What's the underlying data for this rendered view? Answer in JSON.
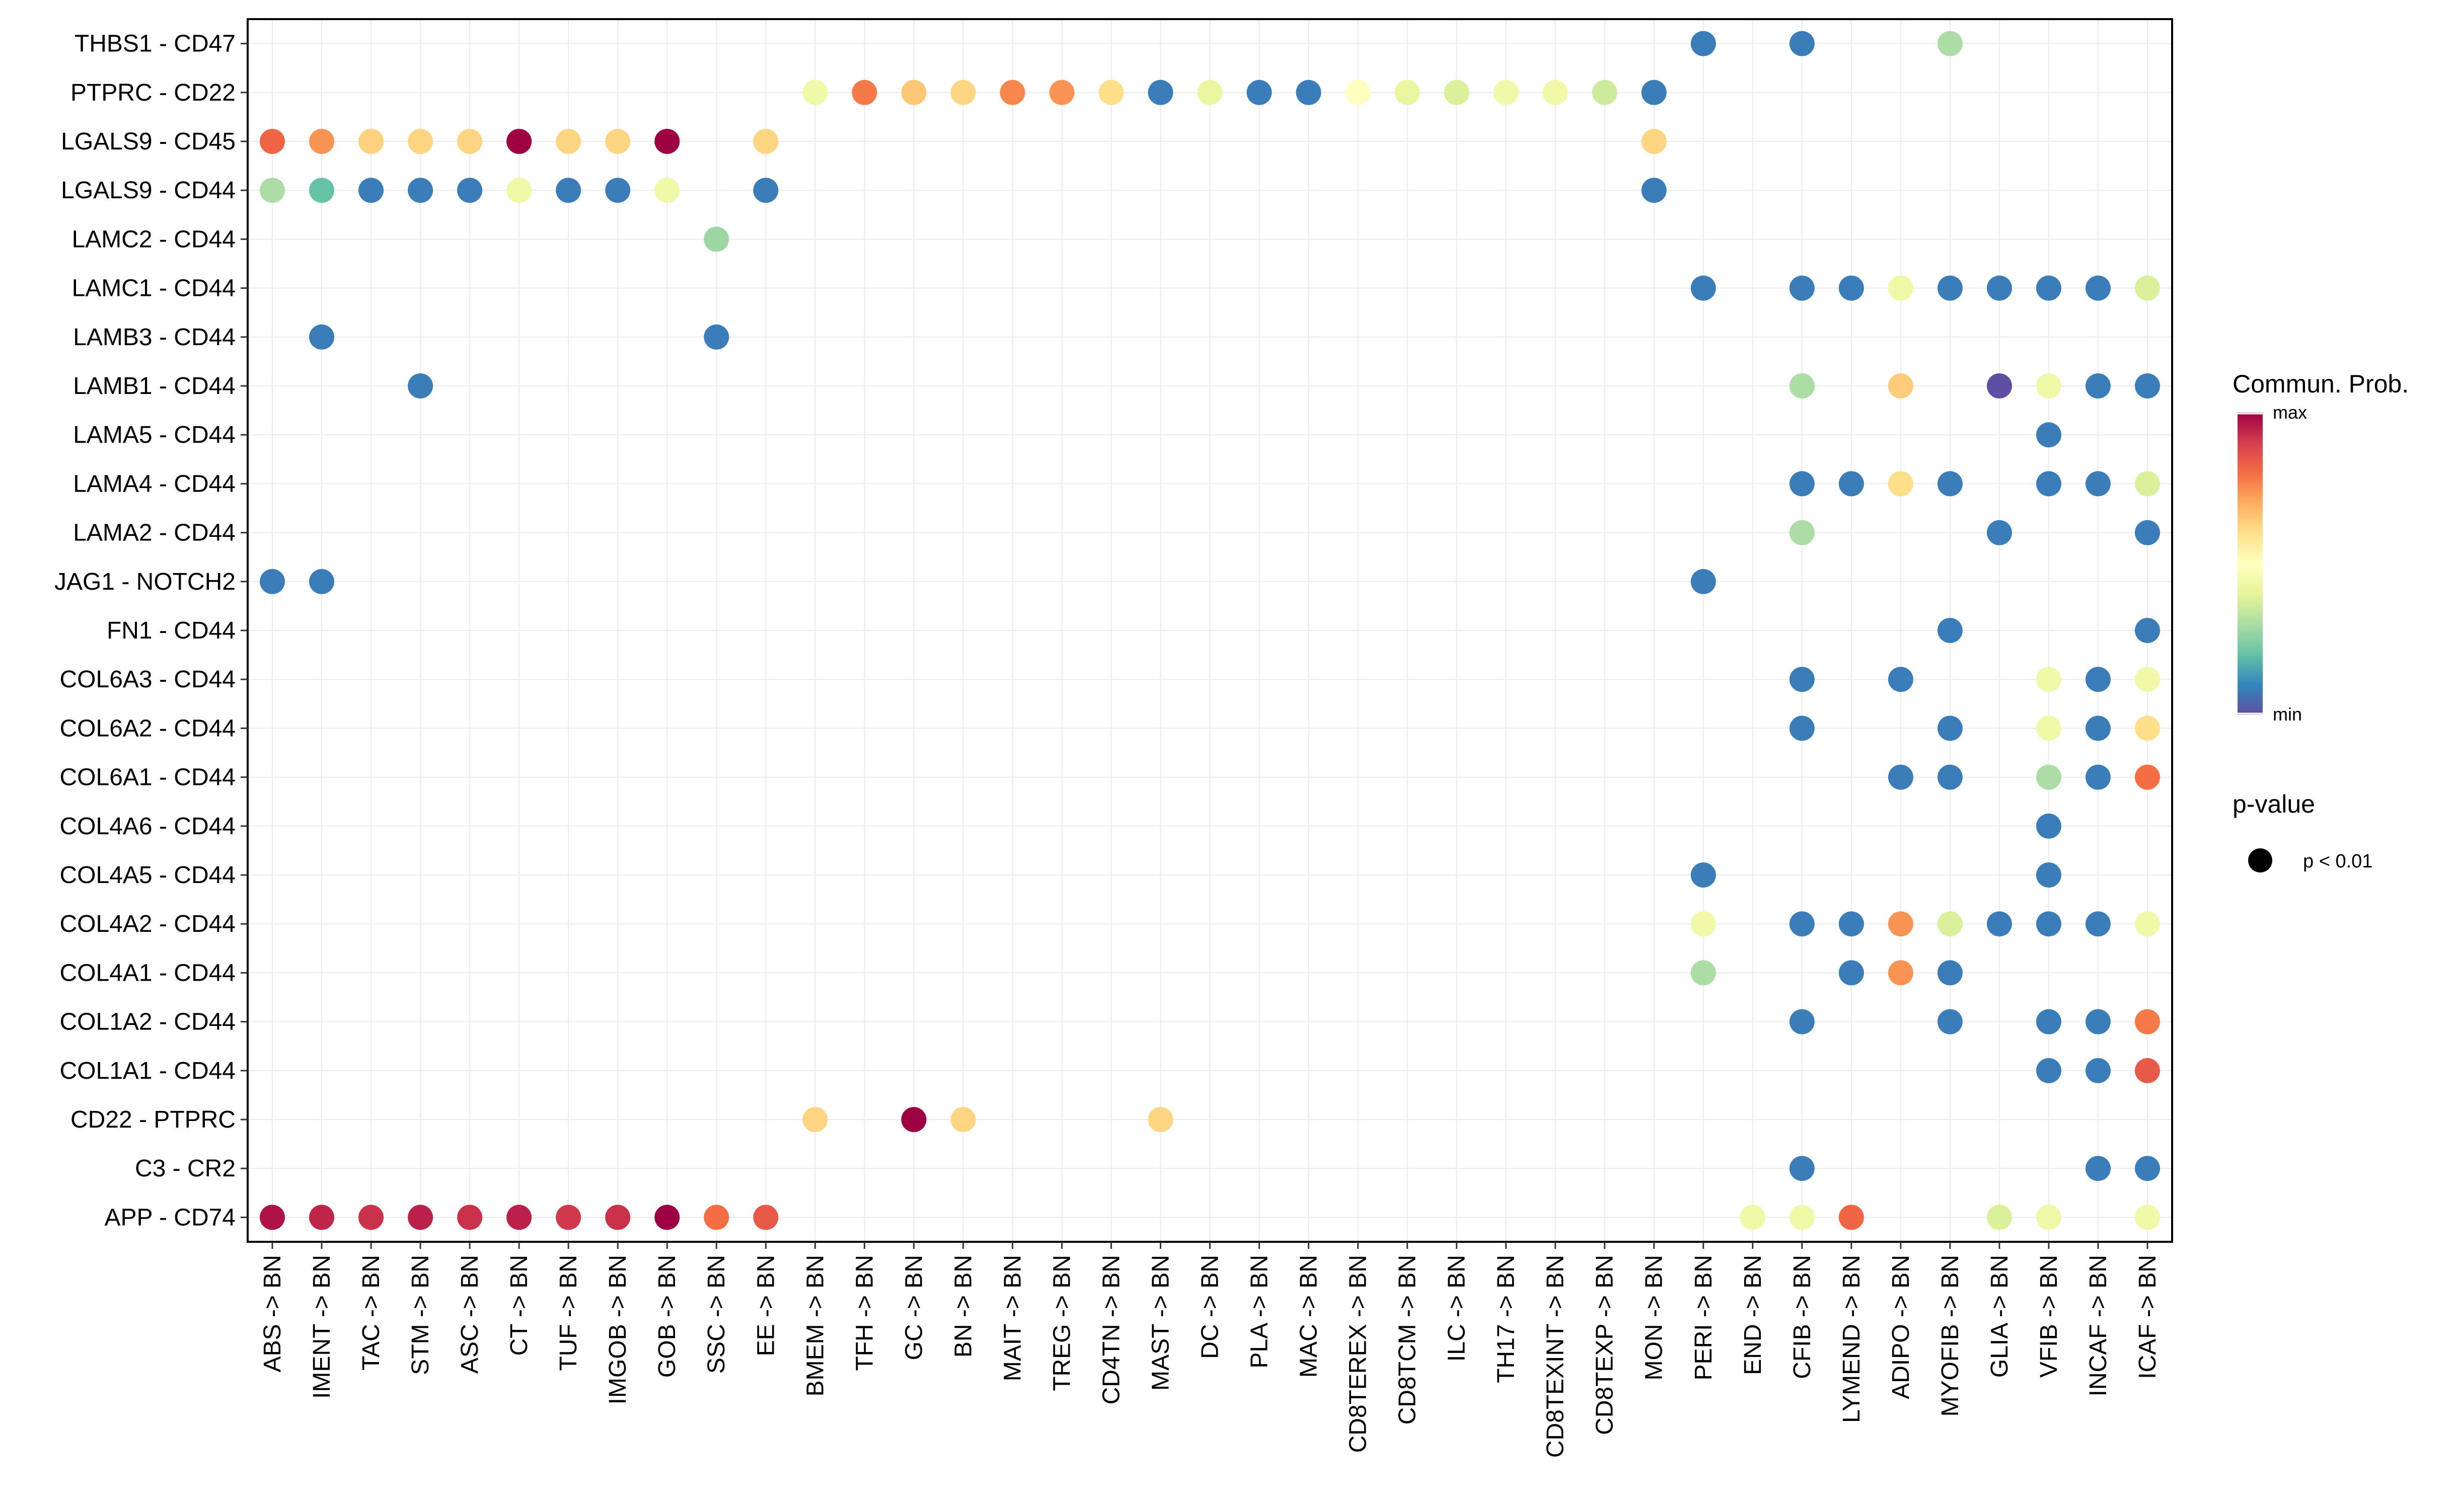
{
  "chart_data": {
    "type": "dot",
    "title": "",
    "xlabel": "",
    "ylabel": "",
    "x_categories": [
      "ABS -> BN",
      "IMENT -> BN",
      "TAC -> BN",
      "STM -> BN",
      "ASC -> BN",
      "CT -> BN",
      "TUF -> BN",
      "IMGOB -> BN",
      "GOB -> BN",
      "SSC -> BN",
      "EE -> BN",
      "BMEM -> BN",
      "TFH -> BN",
      "GC -> BN",
      "BN -> BN",
      "MAIT -> BN",
      "TREG -> BN",
      "CD4TN -> BN",
      "MAST -> BN",
      "DC -> BN",
      "PLA -> BN",
      "MAC -> BN",
      "CD8TEREX -> BN",
      "CD8TCM -> BN",
      "ILC -> BN",
      "TH17 -> BN",
      "CD8TEXINT -> BN",
      "CD8TEXP -> BN",
      "MON -> BN",
      "PERI -> BN",
      "END -> BN",
      "CFIB -> BN",
      "LYMEND -> BN",
      "ADIPO -> BN",
      "MYOFIB -> BN",
      "GLIA -> BN",
      "VFIB -> BN",
      "INCAF -> BN",
      "ICAF -> BN"
    ],
    "y_categories": [
      "THBS1 - CD47",
      "PTPRC - CD22",
      "LGALS9 - CD45",
      "LGALS9 - CD44",
      "LAMC2 - CD44",
      "LAMC1 - CD44",
      "LAMB3 - CD44",
      "LAMB1 - CD44",
      "LAMA5 - CD44",
      "LAMA4 - CD44",
      "LAMA2 - CD44",
      "JAG1 - NOTCH2",
      "FN1 - CD44",
      "COL6A3 - CD44",
      "COL6A2 - CD44",
      "COL6A1 - CD44",
      "COL4A6 - CD44",
      "COL4A5 - CD44",
      "COL4A2 - CD44",
      "COL4A1 - CD44",
      "COL1A2 - CD44",
      "COL1A1 - CD44",
      "CD22 - PTPRC",
      "C3 - CR2",
      "APP - CD74"
    ],
    "value_scale": "relative communication probability, 0 = min, 1 = max",
    "points": [
      {
        "y": "THBS1 - CD47",
        "x": "PERI -> BN",
        "v": 0.08
      },
      {
        "y": "THBS1 - CD47",
        "x": "CFIB -> BN",
        "v": 0.08
      },
      {
        "y": "THBS1 - CD47",
        "x": "MYOFIB -> BN",
        "v": 0.3
      },
      {
        "y": "PTPRC - CD22",
        "x": "BMEM -> BN",
        "v": 0.44
      },
      {
        "y": "PTPRC - CD22",
        "x": "TFH -> BN",
        "v": 0.78
      },
      {
        "y": "PTPRC - CD22",
        "x": "GC -> BN",
        "v": 0.65
      },
      {
        "y": "PTPRC - CD22",
        "x": "BN -> BN",
        "v": 0.62
      },
      {
        "y": "PTPRC - CD22",
        "x": "MAIT -> BN",
        "v": 0.76
      },
      {
        "y": "PTPRC - CD22",
        "x": "TREG -> BN",
        "v": 0.74
      },
      {
        "y": "PTPRC - CD22",
        "x": "CD4TN -> BN",
        "v": 0.6
      },
      {
        "y": "PTPRC - CD22",
        "x": "MAST -> BN",
        "v": 0.08
      },
      {
        "y": "PTPRC - CD22",
        "x": "DC -> BN",
        "v": 0.42
      },
      {
        "y": "PTPRC - CD22",
        "x": "PLA -> BN",
        "v": 0.08
      },
      {
        "y": "PTPRC - CD22",
        "x": "MAC -> BN",
        "v": 0.08
      },
      {
        "y": "PTPRC - CD22",
        "x": "CD8TEREX -> BN",
        "v": 0.5
      },
      {
        "y": "PTPRC - CD22",
        "x": "CD8TCM -> BN",
        "v": 0.42
      },
      {
        "y": "PTPRC - CD22",
        "x": "ILC -> BN",
        "v": 0.38
      },
      {
        "y": "PTPRC - CD22",
        "x": "TH17 -> BN",
        "v": 0.44
      },
      {
        "y": "PTPRC - CD22",
        "x": "CD8TEXINT -> BN",
        "v": 0.44
      },
      {
        "y": "PTPRC - CD22",
        "x": "CD8TEXP -> BN",
        "v": 0.36
      },
      {
        "y": "PTPRC - CD22",
        "x": "MON -> BN",
        "v": 0.08
      },
      {
        "y": "LGALS9 - CD45",
        "x": "ABS -> BN",
        "v": 0.82
      },
      {
        "y": "LGALS9 - CD45",
        "x": "IMENT -> BN",
        "v": 0.74
      },
      {
        "y": "LGALS9 - CD45",
        "x": "TAC -> BN",
        "v": 0.63
      },
      {
        "y": "LGALS9 - CD45",
        "x": "STM -> BN",
        "v": 0.62
      },
      {
        "y": "LGALS9 - CD45",
        "x": "ASC -> BN",
        "v": 0.62
      },
      {
        "y": "LGALS9 - CD45",
        "x": "CT -> BN",
        "v": 1.0
      },
      {
        "y": "LGALS9 - CD45",
        "x": "TUF -> BN",
        "v": 0.62
      },
      {
        "y": "LGALS9 - CD45",
        "x": "IMGOB -> BN",
        "v": 0.62
      },
      {
        "y": "LGALS9 - CD45",
        "x": "GOB -> BN",
        "v": 1.0
      },
      {
        "y": "LGALS9 - CD45",
        "x": "EE -> BN",
        "v": 0.62
      },
      {
        "y": "LGALS9 - CD45",
        "x": "MON -> BN",
        "v": 0.62
      },
      {
        "y": "LGALS9 - CD44",
        "x": "ABS -> BN",
        "v": 0.3
      },
      {
        "y": "LGALS9 - CD44",
        "x": "IMENT -> BN",
        "v": 0.2
      },
      {
        "y": "LGALS9 - CD44",
        "x": "TAC -> BN",
        "v": 0.08
      },
      {
        "y": "LGALS9 - CD44",
        "x": "STM -> BN",
        "v": 0.08
      },
      {
        "y": "LGALS9 - CD44",
        "x": "ASC -> BN",
        "v": 0.08
      },
      {
        "y": "LGALS9 - CD44",
        "x": "CT -> BN",
        "v": 0.44
      },
      {
        "y": "LGALS9 - CD44",
        "x": "TUF -> BN",
        "v": 0.08
      },
      {
        "y": "LGALS9 - CD44",
        "x": "IMGOB -> BN",
        "v": 0.08
      },
      {
        "y": "LGALS9 - CD44",
        "x": "GOB -> BN",
        "v": 0.44
      },
      {
        "y": "LGALS9 - CD44",
        "x": "EE -> BN",
        "v": 0.08
      },
      {
        "y": "LGALS9 - CD44",
        "x": "MON -> BN",
        "v": 0.08
      },
      {
        "y": "LAMC2 - CD44",
        "x": "SSC -> BN",
        "v": 0.28
      },
      {
        "y": "LAMC1 - CD44",
        "x": "PERI -> BN",
        "v": 0.08
      },
      {
        "y": "LAMC1 - CD44",
        "x": "CFIB -> BN",
        "v": 0.08
      },
      {
        "y": "LAMC1 - CD44",
        "x": "LYMEND -> BN",
        "v": 0.08
      },
      {
        "y": "LAMC1 - CD44",
        "x": "ADIPO -> BN",
        "v": 0.44
      },
      {
        "y": "LAMC1 - CD44",
        "x": "MYOFIB -> BN",
        "v": 0.08
      },
      {
        "y": "LAMC1 - CD44",
        "x": "GLIA -> BN",
        "v": 0.08
      },
      {
        "y": "LAMC1 - CD44",
        "x": "VFIB -> BN",
        "v": 0.08
      },
      {
        "y": "LAMC1 - CD44",
        "x": "INCAF -> BN",
        "v": 0.08
      },
      {
        "y": "LAMC1 - CD44",
        "x": "ICAF -> BN",
        "v": 0.38
      },
      {
        "y": "LAMB3 - CD44",
        "x": "IMENT -> BN",
        "v": 0.08
      },
      {
        "y": "LAMB3 - CD44",
        "x": "SSC -> BN",
        "v": 0.08
      },
      {
        "y": "LAMB1 - CD44",
        "x": "STM -> BN",
        "v": 0.08
      },
      {
        "y": "LAMB1 - CD44",
        "x": "CFIB -> BN",
        "v": 0.3
      },
      {
        "y": "LAMB1 - CD44",
        "x": "ADIPO -> BN",
        "v": 0.64
      },
      {
        "y": "LAMB1 - CD44",
        "x": "GLIA -> BN",
        "v": 0.0
      },
      {
        "y": "LAMB1 - CD44",
        "x": "VFIB -> BN",
        "v": 0.44
      },
      {
        "y": "LAMB1 - CD44",
        "x": "INCAF -> BN",
        "v": 0.08
      },
      {
        "y": "LAMB1 - CD44",
        "x": "ICAF -> BN",
        "v": 0.08
      },
      {
        "y": "LAMA5 - CD44",
        "x": "VFIB -> BN",
        "v": 0.08
      },
      {
        "y": "LAMA4 - CD44",
        "x": "CFIB -> BN",
        "v": 0.08
      },
      {
        "y": "LAMA4 - CD44",
        "x": "LYMEND -> BN",
        "v": 0.08
      },
      {
        "y": "LAMA4 - CD44",
        "x": "ADIPO -> BN",
        "v": 0.6
      },
      {
        "y": "LAMA4 - CD44",
        "x": "MYOFIB -> BN",
        "v": 0.08
      },
      {
        "y": "LAMA4 - CD44",
        "x": "VFIB -> BN",
        "v": 0.08
      },
      {
        "y": "LAMA4 - CD44",
        "x": "INCAF -> BN",
        "v": 0.08
      },
      {
        "y": "LAMA4 - CD44",
        "x": "ICAF -> BN",
        "v": 0.38
      },
      {
        "y": "LAMA2 - CD44",
        "x": "CFIB -> BN",
        "v": 0.3
      },
      {
        "y": "LAMA2 - CD44",
        "x": "GLIA -> BN",
        "v": 0.08
      },
      {
        "y": "LAMA2 - CD44",
        "x": "ICAF -> BN",
        "v": 0.08
      },
      {
        "y": "JAG1 - NOTCH2",
        "x": "ABS -> BN",
        "v": 0.08
      },
      {
        "y": "JAG1 - NOTCH2",
        "x": "IMENT -> BN",
        "v": 0.08
      },
      {
        "y": "JAG1 - NOTCH2",
        "x": "PERI -> BN",
        "v": 0.08
      },
      {
        "y": "FN1 - CD44",
        "x": "MYOFIB -> BN",
        "v": 0.08
      },
      {
        "y": "FN1 - CD44",
        "x": "ICAF -> BN",
        "v": 0.08
      },
      {
        "y": "COL6A3 - CD44",
        "x": "CFIB -> BN",
        "v": 0.08
      },
      {
        "y": "COL6A3 - CD44",
        "x": "ADIPO -> BN",
        "v": 0.08
      },
      {
        "y": "COL6A3 - CD44",
        "x": "VFIB -> BN",
        "v": 0.44
      },
      {
        "y": "COL6A3 - CD44",
        "x": "INCAF -> BN",
        "v": 0.08
      },
      {
        "y": "COL6A3 - CD44",
        "x": "ICAF -> BN",
        "v": 0.44
      },
      {
        "y": "COL6A2 - CD44",
        "x": "CFIB -> BN",
        "v": 0.08
      },
      {
        "y": "COL6A2 - CD44",
        "x": "MYOFIB -> BN",
        "v": 0.08
      },
      {
        "y": "COL6A2 - CD44",
        "x": "VFIB -> BN",
        "v": 0.44
      },
      {
        "y": "COL6A2 - CD44",
        "x": "INCAF -> BN",
        "v": 0.08
      },
      {
        "y": "COL6A2 - CD44",
        "x": "ICAF -> BN",
        "v": 0.6
      },
      {
        "y": "COL6A1 - CD44",
        "x": "ADIPO -> BN",
        "v": 0.08
      },
      {
        "y": "COL6A1 - CD44",
        "x": "MYOFIB -> BN",
        "v": 0.08
      },
      {
        "y": "COL6A1 - CD44",
        "x": "VFIB -> BN",
        "v": 0.3
      },
      {
        "y": "COL6A1 - CD44",
        "x": "INCAF -> BN",
        "v": 0.08
      },
      {
        "y": "COL6A1 - CD44",
        "x": "ICAF -> BN",
        "v": 0.8
      },
      {
        "y": "COL4A6 - CD44",
        "x": "VFIB -> BN",
        "v": 0.08
      },
      {
        "y": "COL4A5 - CD44",
        "x": "PERI -> BN",
        "v": 0.08
      },
      {
        "y": "COL4A5 - CD44",
        "x": "VFIB -> BN",
        "v": 0.08
      },
      {
        "y": "COL4A2 - CD44",
        "x": "PERI -> BN",
        "v": 0.44
      },
      {
        "y": "COL4A2 - CD44",
        "x": "CFIB -> BN",
        "v": 0.08
      },
      {
        "y": "COL4A2 - CD44",
        "x": "LYMEND -> BN",
        "v": 0.08
      },
      {
        "y": "COL4A2 - CD44",
        "x": "ADIPO -> BN",
        "v": 0.74
      },
      {
        "y": "COL4A2 - CD44",
        "x": "MYOFIB -> BN",
        "v": 0.38
      },
      {
        "y": "COL4A2 - CD44",
        "x": "GLIA -> BN",
        "v": 0.08
      },
      {
        "y": "COL4A2 - CD44",
        "x": "VFIB -> BN",
        "v": 0.08
      },
      {
        "y": "COL4A2 - CD44",
        "x": "INCAF -> BN",
        "v": 0.08
      },
      {
        "y": "COL4A2 - CD44",
        "x": "ICAF -> BN",
        "v": 0.44
      },
      {
        "y": "COL4A1 - CD44",
        "x": "PERI -> BN",
        "v": 0.3
      },
      {
        "y": "COL4A1 - CD44",
        "x": "LYMEND -> BN",
        "v": 0.08
      },
      {
        "y": "COL4A1 - CD44",
        "x": "ADIPO -> BN",
        "v": 0.74
      },
      {
        "y": "COL4A1 - CD44",
        "x": "MYOFIB -> BN",
        "v": 0.08
      },
      {
        "y": "COL1A2 - CD44",
        "x": "CFIB -> BN",
        "v": 0.08
      },
      {
        "y": "COL1A2 - CD44",
        "x": "MYOFIB -> BN",
        "v": 0.08
      },
      {
        "y": "COL1A2 - CD44",
        "x": "VFIB -> BN",
        "v": 0.08
      },
      {
        "y": "COL1A2 - CD44",
        "x": "INCAF -> BN",
        "v": 0.08
      },
      {
        "y": "COL1A2 - CD44",
        "x": "ICAF -> BN",
        "v": 0.78
      },
      {
        "y": "COL1A1 - CD44",
        "x": "VFIB -> BN",
        "v": 0.08
      },
      {
        "y": "COL1A1 - CD44",
        "x": "INCAF -> BN",
        "v": 0.08
      },
      {
        "y": "COL1A1 - CD44",
        "x": "ICAF -> BN",
        "v": 0.84
      },
      {
        "y": "CD22 - PTPRC",
        "x": "BMEM -> BN",
        "v": 0.62
      },
      {
        "y": "CD22 - PTPRC",
        "x": "GC -> BN",
        "v": 1.0
      },
      {
        "y": "CD22 - PTPRC",
        "x": "BN -> BN",
        "v": 0.62
      },
      {
        "y": "CD22 - PTPRC",
        "x": "MAST -> BN",
        "v": 0.62
      },
      {
        "y": "C3 - CR2",
        "x": "CFIB -> BN",
        "v": 0.08
      },
      {
        "y": "C3 - CR2",
        "x": "INCAF -> BN",
        "v": 0.08
      },
      {
        "y": "C3 - CR2",
        "x": "ICAF -> BN",
        "v": 0.08
      },
      {
        "y": "APP - CD74",
        "x": "ABS -> BN",
        "v": 0.97
      },
      {
        "y": "APP - CD74",
        "x": "IMENT -> BN",
        "v": 0.94
      },
      {
        "y": "APP - CD74",
        "x": "TAC -> BN",
        "v": 0.92
      },
      {
        "y": "APP - CD74",
        "x": "STM -> BN",
        "v": 0.95
      },
      {
        "y": "APP - CD74",
        "x": "ASC -> BN",
        "v": 0.92
      },
      {
        "y": "APP - CD74",
        "x": "CT -> BN",
        "v": 0.95
      },
      {
        "y": "APP - CD74",
        "x": "TUF -> BN",
        "v": 0.91
      },
      {
        "y": "APP - CD74",
        "x": "IMGOB -> BN",
        "v": 0.92
      },
      {
        "y": "APP - CD74",
        "x": "GOB -> BN",
        "v": 1.0
      },
      {
        "y": "APP - CD74",
        "x": "SSC -> BN",
        "v": 0.8
      },
      {
        "y": "APP - CD74",
        "x": "EE -> BN",
        "v": 0.84
      },
      {
        "y": "APP - CD74",
        "x": "END -> BN",
        "v": 0.44
      },
      {
        "y": "APP - CD74",
        "x": "CFIB -> BN",
        "v": 0.44
      },
      {
        "y": "APP - CD74",
        "x": "LYMEND -> BN",
        "v": 0.82
      },
      {
        "y": "APP - CD74",
        "x": "GLIA -> BN",
        "v": 0.38
      },
      {
        "y": "APP - CD74",
        "x": "VFIB -> BN",
        "v": 0.44
      },
      {
        "y": "APP - CD74",
        "x": "ICAF -> BN",
        "v": 0.44
      }
    ],
    "legend": {
      "color_title": "Commun. Prob.",
      "color_max_label": "max",
      "color_min_label": "min",
      "size_title": "p-value",
      "size_label": "p < 0.01",
      "palette": [
        "#5E4FA2",
        "#3288BD",
        "#66C2A5",
        "#ABDDA4",
        "#E6F598",
        "#FFFFBF",
        "#FEE08B",
        "#FDAE61",
        "#F46D43",
        "#D53E4F",
        "#9E0142"
      ]
    }
  }
}
